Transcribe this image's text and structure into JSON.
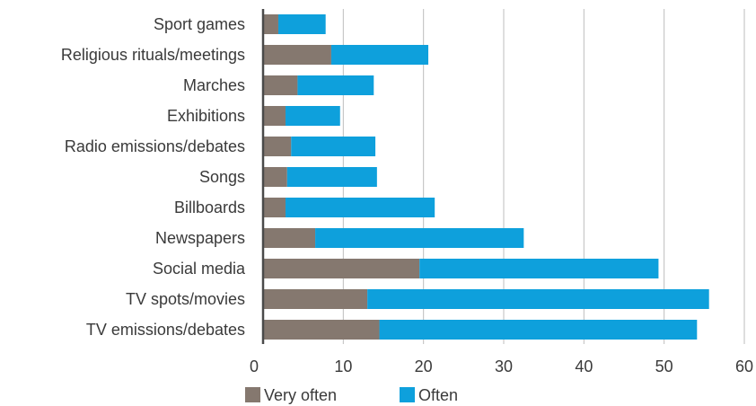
{
  "chart_data": {
    "type": "bar",
    "orientation": "horizontal",
    "stacked": true,
    "categories": [
      "Sport games",
      "Religious rituals/meetings",
      "Marches",
      "Exhibitions",
      "Radio emissions/debates",
      "Songs",
      "Billboards",
      "Newspapers",
      "Social media",
      "TV spots/movies",
      "TV emissions/debates"
    ],
    "series": [
      {
        "name": "Very often",
        "color": "#85786F",
        "values": [
          1.9,
          8.5,
          4.3,
          2.8,
          3.5,
          3.0,
          2.8,
          6.5,
          19.5,
          13.0,
          14.5
        ]
      },
      {
        "name": "Often",
        "color": "#0EA0DC",
        "values": [
          5.9,
          12.1,
          9.5,
          6.8,
          10.5,
          11.2,
          18.6,
          26.0,
          29.8,
          42.6,
          39.6
        ]
      }
    ],
    "xlim": [
      0,
      60
    ],
    "xticks": [
      "0",
      "10",
      "20",
      "30",
      "40",
      "50",
      "60"
    ],
    "grid": "vertical",
    "legend_position": "bottom",
    "title": "",
    "xlabel": "",
    "ylabel": ""
  }
}
